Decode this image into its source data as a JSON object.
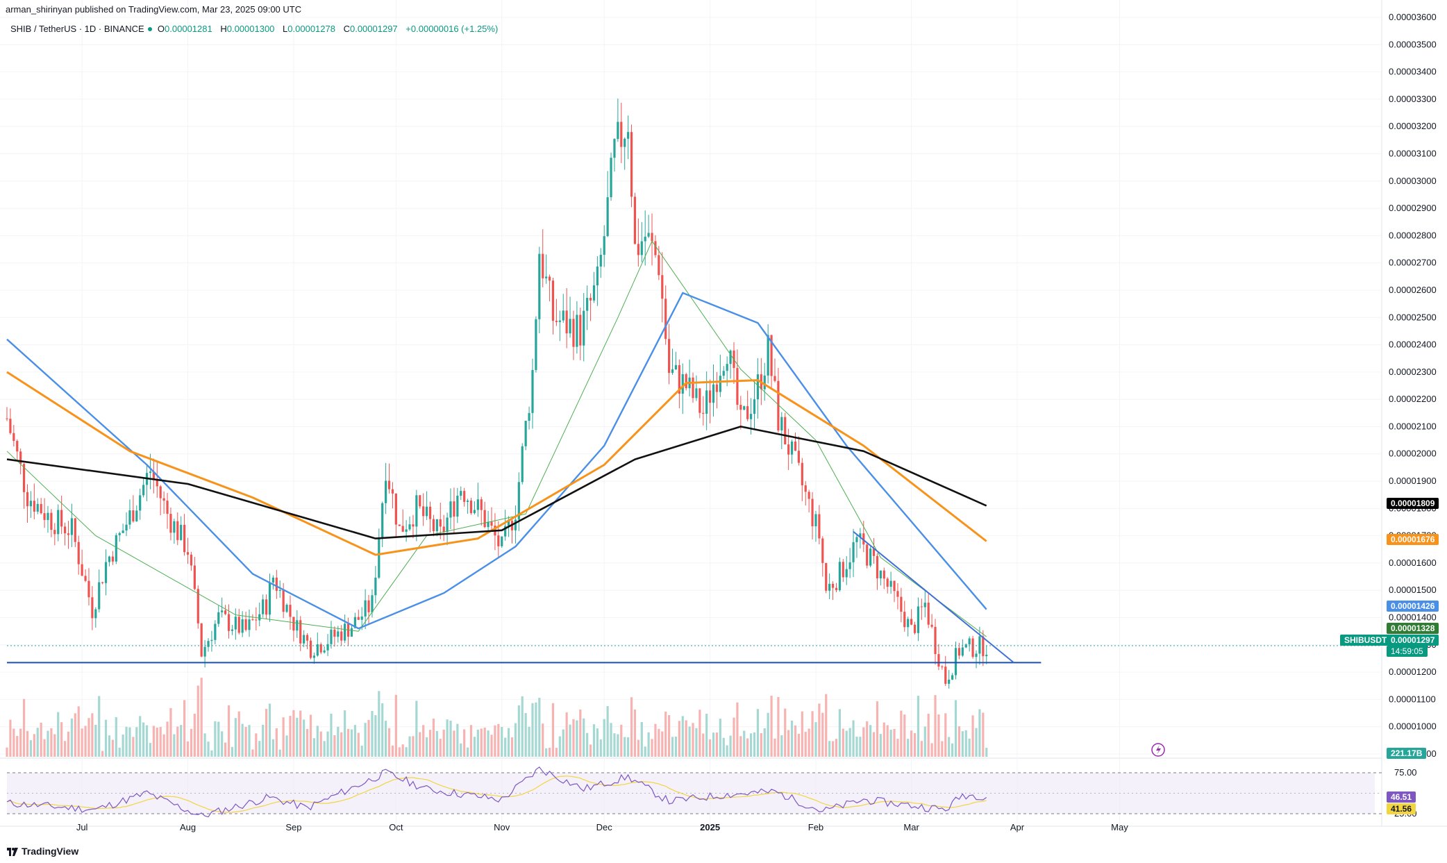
{
  "header": {
    "published": "arman_shirinyan published on TradingView.com, Mar 23, 2025 09:00 UTC"
  },
  "legend": {
    "symbol": "SHIB / TetherUS · 1D · BINANCE",
    "o_label": "O",
    "o_value": "0.00001281",
    "h_label": "H",
    "h_value": "0.00001300",
    "l_label": "L",
    "l_value": "0.00001278",
    "c_label": "C",
    "c_value": "0.00001297",
    "change": "+0.00000016 (+1.25%)"
  },
  "tags": {
    "ma200": "0.00001809",
    "ma100": "0.00001676",
    "ma50": "0.00001426",
    "ma20": "0.00001328",
    "symbol_name": "SHIBUSDT",
    "last_price": "0.00001297",
    "countdown": "14:59:05",
    "volume": "221.17B",
    "rsi": "46.51",
    "rsi_ma": "41.56"
  },
  "colors": {
    "up": "#26a69a",
    "down": "#ef5350",
    "ma20": "#4caf50",
    "ma50": "#4a8fe7",
    "ma100": "#f7931a",
    "ma200": "#111111",
    "support": "#1b4fb0",
    "trend": "#3f6fd8",
    "rsi": "#7e57c2",
    "rsi_ma": "#f2d541"
  },
  "brand": "TradingView",
  "chart_data": {
    "type": "candlestick",
    "symbol": "SHIB / TetherUS",
    "interval": "1D",
    "exchange": "BINANCE",
    "price_axis": {
      "ylim": [
        9e-06,
        3.6e-05
      ],
      "ticks": [
        "0.00000900",
        "0.00001000",
        "0.00001100",
        "0.00001200",
        "0.00001300",
        "0.00001400",
        "0.00001500",
        "0.00001600",
        "0.00001700",
        "0.00001800",
        "0.00001900",
        "0.00002000",
        "0.00002100",
        "0.00002200",
        "0.00002300",
        "0.00002400",
        "0.00002500",
        "0.00002600",
        "0.00002700",
        "0.00002800",
        "0.00002900",
        "0.00003000",
        "0.00003100",
        "0.00003200",
        "0.00003300",
        "0.00003400",
        "0.00003500",
        "0.00003600"
      ]
    },
    "time_axis": {
      "xlim": [
        "2024-06-09",
        "2025-05-30"
      ],
      "ticks": [
        {
          "label": "Jul",
          "date": "2024-07-01"
        },
        {
          "label": "Aug",
          "date": "2024-08-01"
        },
        {
          "label": "Sep",
          "date": "2024-09-01"
        },
        {
          "label": "Oct",
          "date": "2024-10-01"
        },
        {
          "label": "Nov",
          "date": "2024-11-01"
        },
        {
          "label": "Dec",
          "date": "2024-12-01"
        },
        {
          "label": "2025",
          "date": "2025-01-01"
        },
        {
          "label": "Feb",
          "date": "2025-02-01"
        },
        {
          "label": "Mar",
          "date": "2025-03-01"
        },
        {
          "label": "Apr",
          "date": "2025-04-01"
        },
        {
          "label": "May",
          "date": "2025-05-01"
        }
      ]
    },
    "close_path": [
      [
        "2024-06-09",
        2.13e-05
      ],
      [
        "2024-06-15",
        1.85e-05
      ],
      [
        "2024-06-22",
        1.76e-05
      ],
      [
        "2024-06-28",
        1.72e-05
      ],
      [
        "2024-07-04",
        1.43e-05
      ],
      [
        "2024-07-08",
        1.6e-05
      ],
      [
        "2024-07-15",
        1.77e-05
      ],
      [
        "2024-07-21",
        1.94e-05
      ],
      [
        "2024-07-26",
        1.78e-05
      ],
      [
        "2024-08-01",
        1.65e-05
      ],
      [
        "2024-08-04",
        1.38e-05
      ],
      [
        "2024-08-05",
        1.27e-05
      ],
      [
        "2024-08-10",
        1.4e-05
      ],
      [
        "2024-08-18",
        1.35e-05
      ],
      [
        "2024-08-24",
        1.45e-05
      ],
      [
        "2024-08-26",
        1.55e-05
      ],
      [
        "2024-09-01",
        1.38e-05
      ],
      [
        "2024-09-06",
        1.29e-05
      ],
      [
        "2024-09-10",
        1.31e-05
      ],
      [
        "2024-09-18",
        1.37e-05
      ],
      [
        "2024-09-24",
        1.45e-05
      ],
      [
        "2024-09-28",
        1.96e-05
      ],
      [
        "2024-10-02",
        1.72e-05
      ],
      [
        "2024-10-07",
        1.8e-05
      ],
      [
        "2024-10-14",
        1.7e-05
      ],
      [
        "2024-10-20",
        1.88e-05
      ],
      [
        "2024-10-26",
        1.78e-05
      ],
      [
        "2024-11-01",
        1.65e-05
      ],
      [
        "2024-11-05",
        1.8e-05
      ],
      [
        "2024-11-10",
        2.3e-05
      ],
      [
        "2024-11-12",
        2.75e-05
      ],
      [
        "2024-11-16",
        2.5e-05
      ],
      [
        "2024-11-24",
        2.45e-05
      ],
      [
        "2024-11-29",
        2.62e-05
      ],
      [
        "2024-12-01",
        2.8e-05
      ],
      [
        "2024-12-04",
        3.1e-05
      ],
      [
        "2024-12-08",
        3.23e-05
      ],
      [
        "2024-12-10",
        2.75e-05
      ],
      [
        "2024-12-13",
        2.8e-05
      ],
      [
        "2024-12-17",
        2.7e-05
      ],
      [
        "2024-12-20",
        2.3e-05
      ],
      [
        "2024-12-25",
        2.25e-05
      ],
      [
        "2024-12-30",
        2.15e-05
      ],
      [
        "2025-01-02",
        2.26e-05
      ],
      [
        "2025-01-06",
        2.4e-05
      ],
      [
        "2025-01-10",
        2.1e-05
      ],
      [
        "2025-01-15",
        2.25e-05
      ],
      [
        "2025-01-18",
        2.38e-05
      ],
      [
        "2025-01-21",
        2.13e-05
      ],
      [
        "2025-01-27",
        1.92e-05
      ],
      [
        "2025-02-02",
        1.7e-05
      ],
      [
        "2025-02-04",
        1.5e-05
      ],
      [
        "2025-02-08",
        1.56e-05
      ],
      [
        "2025-02-13",
        1.68e-05
      ],
      [
        "2025-02-18",
        1.6e-05
      ],
      [
        "2025-02-25",
        1.45e-05
      ],
      [
        "2025-03-01",
        1.35e-05
      ],
      [
        "2025-03-05",
        1.45e-05
      ],
      [
        "2025-03-08",
        1.3e-05
      ],
      [
        "2025-03-11",
        1.17e-05
      ],
      [
        "2025-03-15",
        1.28e-05
      ],
      [
        "2025-03-19",
        1.29e-05
      ],
      [
        "2025-03-23",
        1.297e-05
      ]
    ],
    "moving_averages": [
      {
        "period": 20,
        "last": 1.328e-05,
        "path": [
          [
            "2024-06-09",
            2.01e-05
          ],
          [
            "2024-07-05",
            1.7e-05
          ],
          [
            "2024-08-15",
            1.41e-05
          ],
          [
            "2024-09-20",
            1.35e-05
          ],
          [
            "2024-10-10",
            1.7e-05
          ],
          [
            "2024-11-08",
            1.78e-05
          ],
          [
            "2024-12-05",
            2.5e-05
          ],
          [
            "2024-12-15",
            2.78e-05
          ],
          [
            "2025-01-10",
            2.31e-05
          ],
          [
            "2025-02-01",
            2.05e-05
          ],
          [
            "2025-02-20",
            1.62e-05
          ],
          [
            "2025-03-23",
            1.33e-05
          ]
        ]
      },
      {
        "period": 50,
        "last": 1.426e-05,
        "path": [
          [
            "2024-06-09",
            2.42e-05
          ],
          [
            "2024-07-20",
            1.96e-05
          ],
          [
            "2024-08-20",
            1.56e-05
          ],
          [
            "2024-09-20",
            1.36e-05
          ],
          [
            "2024-10-15",
            1.49e-05
          ],
          [
            "2024-11-05",
            1.66e-05
          ],
          [
            "2024-12-01",
            2.03e-05
          ],
          [
            "2024-12-24",
            2.59e-05
          ],
          [
            "2025-01-15",
            2.48e-05
          ],
          [
            "2025-02-10",
            2.03e-05
          ],
          [
            "2025-03-23",
            1.43e-05
          ]
        ]
      },
      {
        "period": 100,
        "last": 1.676e-05,
        "path": [
          [
            "2024-06-09",
            2.3e-05
          ],
          [
            "2024-07-15",
            2.01e-05
          ],
          [
            "2024-08-20",
            1.84e-05
          ],
          [
            "2024-09-25",
            1.63e-05
          ],
          [
            "2024-10-25",
            1.69e-05
          ],
          [
            "2024-12-01",
            1.96e-05
          ],
          [
            "2024-12-25",
            2.26e-05
          ],
          [
            "2025-01-15",
            2.27e-05
          ],
          [
            "2025-02-15",
            2.03e-05
          ],
          [
            "2025-03-23",
            1.68e-05
          ]
        ]
      },
      {
        "period": 200,
        "last": 1.809e-05,
        "path": [
          [
            "2024-06-09",
            1.98e-05
          ],
          [
            "2024-08-01",
            1.89e-05
          ],
          [
            "2024-09-25",
            1.69e-05
          ],
          [
            "2024-11-01",
            1.72e-05
          ],
          [
            "2024-12-10",
            1.98e-05
          ],
          [
            "2025-01-10",
            2.1e-05
          ],
          [
            "2025-02-15",
            2.01e-05
          ],
          [
            "2025-03-23",
            1.81e-05
          ]
        ]
      }
    ],
    "support_line": {
      "price": 1.235e-05,
      "from": "2024-06-09",
      "to": "2025-04-08"
    },
    "trendline": {
      "from": [
        "2025-02-12",
        1.715e-05
      ],
      "to": [
        "2025-03-31",
        1.235e-05
      ]
    },
    "last_price": 1.297e-05,
    "volume": {
      "last": "221.17B"
    },
    "rsi": {
      "levels": [
        "75.00",
        "25.00"
      ],
      "last": 46.51,
      "ma_last": 41.56,
      "path": [
        [
          "2024-06-09",
          38
        ],
        [
          "2024-07-05",
          30
        ],
        [
          "2024-07-20",
          50
        ],
        [
          "2024-08-05",
          22
        ],
        [
          "2024-08-25",
          45
        ],
        [
          "2024-09-05",
          32
        ],
        [
          "2024-09-28",
          75
        ],
        [
          "2024-10-10",
          55
        ],
        [
          "2024-11-01",
          42
        ],
        [
          "2024-11-12",
          80
        ],
        [
          "2024-11-25",
          55
        ],
        [
          "2024-12-08",
          70
        ],
        [
          "2024-12-20",
          40
        ],
        [
          "2025-01-05",
          48
        ],
        [
          "2025-01-20",
          52
        ],
        [
          "2025-02-03",
          28
        ],
        [
          "2025-02-15",
          42
        ],
        [
          "2025-03-01",
          35
        ],
        [
          "2025-03-11",
          30
        ],
        [
          "2025-03-16",
          48
        ],
        [
          "2025-03-23",
          46.51
        ]
      ]
    }
  }
}
